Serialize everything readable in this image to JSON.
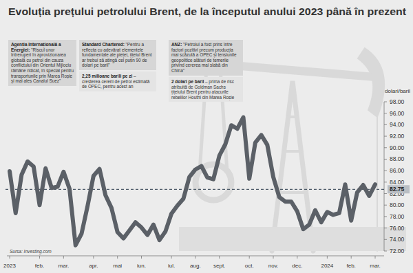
{
  "chart_data": {
    "type": "line",
    "title": "Evoluția prețului petrolului Brent, de la începutul anului 2023 până în prezent",
    "y_label": "dolari/baril",
    "source": "Sursa: Investing.com",
    "color": "#5b6067",
    "categories": [
      "2023",
      null,
      null,
      null,
      null,
      "feb.",
      null,
      null,
      null,
      "mar.",
      null,
      null,
      null,
      null,
      "apr.",
      null,
      null,
      null,
      "mai",
      null,
      null,
      null,
      "iun.",
      null,
      null,
      null,
      null,
      "iul.",
      null,
      null,
      null,
      "aug.",
      null,
      null,
      null,
      "sept.",
      null,
      null,
      null,
      null,
      "oct.",
      null,
      null,
      null,
      "nov.",
      null,
      null,
      null,
      "dec.",
      null,
      null,
      null,
      null,
      "2024",
      null,
      null,
      null,
      "feb.",
      null,
      null,
      null,
      "mar."
    ],
    "values": [
      85.9,
      78.6,
      85.3,
      87.6,
      86.7,
      80.0,
      86.4,
      83.0,
      83.2,
      85.8,
      82.8,
      73.0,
      75.0,
      79.8,
      85.1,
      86.3,
      81.7,
      79.5,
      75.3,
      74.2,
      75.6,
      77.0,
      76.1,
      74.8,
      76.6,
      73.9,
      75.4,
      78.5,
      79.9,
      81.1,
      84.9,
      86.2,
      86.8,
      84.8,
      84.5,
      88.6,
      90.6,
      93.9,
      93.3,
      95.3,
      84.6,
      90.9,
      92.2,
      90.5,
      84.9,
      81.4,
      80.6,
      80.6,
      78.9,
      75.8,
      76.6,
      79.1,
      77.0,
      78.8,
      78.3,
      78.6,
      83.6,
      77.3,
      82.2,
      83.5,
      81.6,
      83.6
    ],
    "ylim": [
      72,
      98
    ],
    "yticks": [
      {
        "value": 72,
        "label": "72.00"
      },
      {
        "value": 74,
        "label": "74.00"
      },
      {
        "value": 76,
        "label": "76.00"
      },
      {
        "value": 78,
        "label": "78.00"
      },
      {
        "value": 80,
        "label": "80.00"
      },
      {
        "value": 82,
        "label": "82.00"
      },
      {
        "value": 84,
        "label": "84.00"
      },
      {
        "value": 86,
        "label": "86.00"
      },
      {
        "value": 88,
        "label": "88.00"
      },
      {
        "value": 90,
        "label": "90.00"
      },
      {
        "value": 92,
        "label": "92.00"
      },
      {
        "value": 94,
        "label": "94.00"
      },
      {
        "value": 96,
        "label": "96.00"
      },
      {
        "value": 98,
        "label": "98.00"
      }
    ],
    "grid": false,
    "reference_line": {
      "value": 82.75,
      "label": "82.75"
    },
    "annotations": [
      {
        "heading": "Agenția Internațională a Energiei:",
        "text": "\"Riscul unor întreruperi în aprovizionarea globală cu petrol din cauza conflictului din Orientul Mijlociu rămâne ridicat, în special pentru transportunile prin Marea Roșie și mai ales Canalul Suez\""
      },
      {
        "heading": "Standard Chartered:",
        "text": "\"Pentru a reflecta cu adevărat elementele fundamentale ale pieței, țițeiul Brent ar trebui să atingă cel puțin 90 de dolari pe baril\""
      },
      {
        "heading": "2,25 milioane barili pe zi",
        "text": "– creșterea cererii de petrol estimată de OPEC, pentru acest an"
      },
      {
        "heading": "ANZ:",
        "text": "\"Petrolul a fost prins între factori pozitivi precum producția mai scăzută a OPEC și tensiunile geopolitice alături de temerile privind cererea mai slabă din China\""
      },
      {
        "heading": "2 dolari pe baril",
        "text": "– prima de risc atribuită de Goldman Sachs țițeiului Brent pentru atacurile rebelilor Houthi din Marea Roșie"
      }
    ]
  }
}
